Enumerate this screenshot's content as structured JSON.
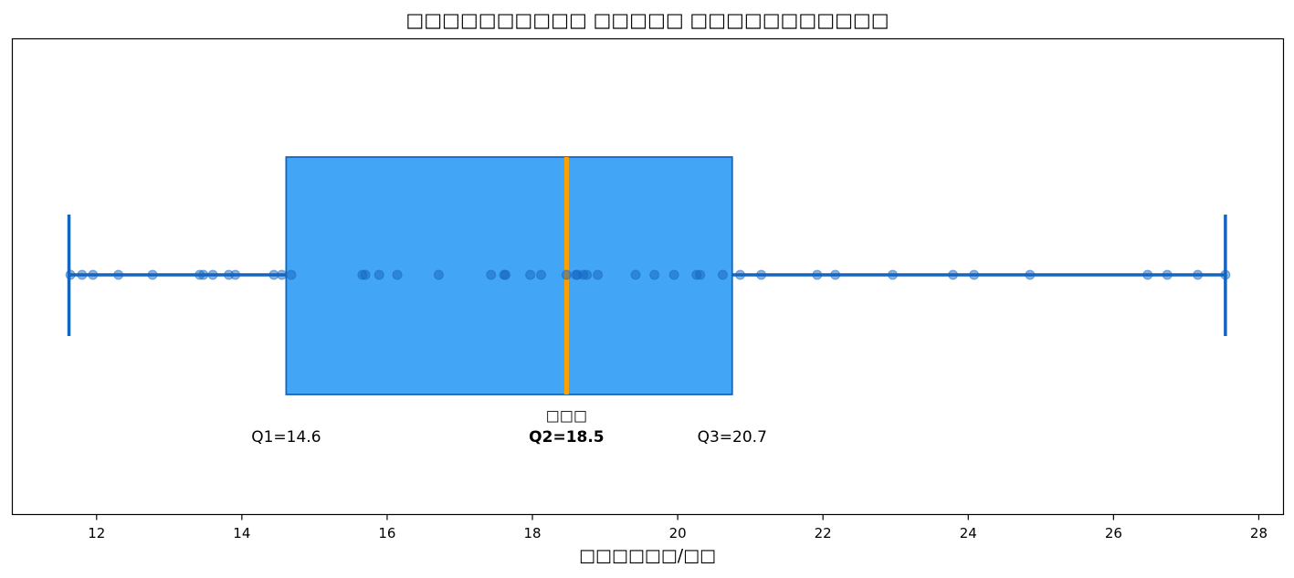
{
  "chart_data": {
    "type": "box",
    "title": "□□□□□□□□□□ □□□□□ □□□□□□□□□□□",
    "x_label": "□□□□□□/□□",
    "whisker_low": 11.62,
    "q1": 14.61,
    "median": 18.47,
    "q3": 20.75,
    "whisker_high": 27.54,
    "points": [
      11.64,
      11.8,
      11.95,
      12.3,
      12.77,
      13.42,
      13.47,
      13.6,
      13.82,
      13.91,
      14.44,
      14.55,
      14.68,
      15.66,
      15.7,
      15.89,
      16.14,
      16.71,
      17.43,
      17.61,
      17.63,
      17.97,
      18.12,
      18.47,
      18.6,
      18.62,
      18.7,
      18.75,
      18.9,
      19.42,
      19.68,
      19.95,
      20.26,
      20.31,
      20.62,
      20.86,
      21.15,
      21.92,
      22.17,
      22.96,
      23.79,
      24.08,
      24.85,
      26.47,
      26.74,
      27.16,
      27.54
    ],
    "median_label": "□□□",
    "annotations": [
      "Q1=14.6",
      "Q2=18.5",
      "Q3=20.7"
    ],
    "xlim": [
      10.84,
      28.34
    ],
    "xticks": [
      12,
      14,
      16,
      18,
      20,
      22,
      24,
      26,
      28
    ],
    "box_color": "#42a5f5",
    "edge_color": "#1565c0",
    "median_color": "#ffa000",
    "point_color": "#1565c0",
    "median_text_color": "#ef6c00",
    "title_color": "#145a48"
  }
}
